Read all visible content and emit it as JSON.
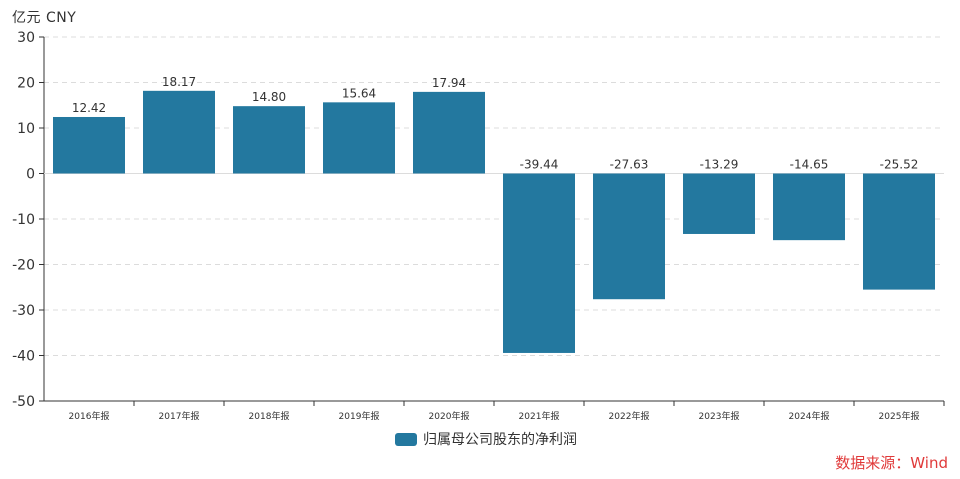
{
  "unit_label": "亿元  CNY",
  "legend_label": "归属母公司股东的净利润",
  "source_text": "数据来源：Wind",
  "colors": {
    "bar": "#23789f",
    "grid": "#dcdcdc",
    "axis": "#333333",
    "source": "#e03a3a"
  },
  "chart_data": {
    "type": "bar",
    "categories": [
      "2016年报",
      "2017年报",
      "2018年报",
      "2019年报",
      "2020年报",
      "2021年报",
      "2022年报",
      "2023年报",
      "2024年报",
      "2025年报"
    ],
    "series": [
      {
        "name": "归属母公司股东的净利润",
        "values": [
          12.42,
          18.17,
          14.8,
          15.64,
          17.94,
          -39.44,
          -27.63,
          -13.29,
          -14.65,
          -25.52
        ],
        "labels": [
          "12.42",
          "18.17",
          "14.80",
          "15.64",
          "17.94",
          "-39.44",
          "-27.63",
          "-13.29",
          "-14.65",
          "-25.52"
        ]
      }
    ],
    "ylim": [
      -50,
      30
    ],
    "yticks": [
      30,
      20,
      10,
      0,
      -10,
      -20,
      -30,
      -40,
      -50
    ],
    "grid": true,
    "legend": "bottom-center"
  }
}
